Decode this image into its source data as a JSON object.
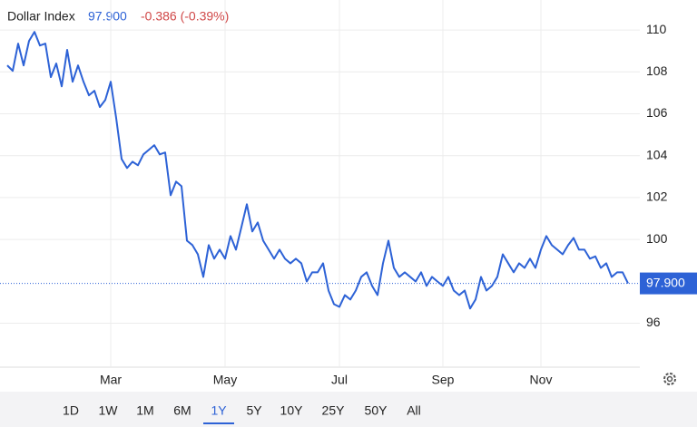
{
  "chart_data": {
    "type": "line",
    "title": "Dollar Index",
    "price": "97.900",
    "change": "-0.386 (-0.39%)",
    "color": "#2d62d6",
    "categories": [
      null,
      null,
      null,
      null,
      null,
      null,
      null,
      null,
      null,
      null,
      null,
      null,
      null,
      null,
      null,
      null,
      null,
      null,
      null,
      "Mar",
      null,
      null,
      null,
      null,
      null,
      null,
      null,
      null,
      null,
      null,
      null,
      null,
      null,
      null,
      null,
      null,
      null,
      null,
      null,
      null,
      "May",
      null,
      null,
      null,
      null,
      null,
      null,
      null,
      null,
      null,
      null,
      null,
      null,
      null,
      null,
      null,
      null,
      null,
      null,
      null,
      null,
      "Jul",
      null,
      null,
      null,
      null,
      null,
      null,
      null,
      null,
      null,
      null,
      null,
      null,
      null,
      null,
      null,
      null,
      null,
      null,
      "Sep",
      null,
      null,
      null,
      null,
      null,
      null,
      null,
      null,
      null,
      null,
      null,
      null,
      null,
      null,
      null,
      null,
      null,
      "Nov",
      null,
      null,
      null,
      null,
      null,
      null,
      null,
      null,
      null,
      null,
      null,
      null,
      null,
      null,
      null,
      null
    ],
    "values": [
      108.31,
      108.05,
      109.35,
      108.31,
      109.48,
      109.91,
      109.26,
      109.35,
      107.75,
      108.4,
      107.31,
      109.05,
      107.53,
      108.31,
      107.53,
      106.88,
      107.1,
      106.32,
      106.66,
      107.53,
      105.8,
      103.84,
      103.41,
      103.71,
      103.54,
      104.06,
      104.28,
      104.5,
      104.06,
      104.15,
      102.11,
      102.76,
      102.54,
      99.94,
      99.73,
      99.29,
      98.21,
      99.73,
      99.08,
      99.51,
      99.08,
      100.16,
      99.51,
      100.59,
      101.68,
      100.38,
      100.81,
      99.94,
      99.51,
      99.08,
      99.51,
      99.08,
      98.86,
      99.08,
      98.86,
      97.99,
      98.43,
      98.43,
      98.86,
      97.56,
      96.91,
      96.78,
      97.34,
      97.13,
      97.56,
      98.21,
      98.43,
      97.78,
      97.34,
      98.86,
      99.94,
      98.64,
      98.21,
      98.43,
      98.21,
      97.99,
      98.43,
      97.78,
      98.21,
      97.99,
      97.78,
      98.21,
      97.56,
      97.34,
      97.56,
      96.7,
      97.13,
      98.21,
      97.56,
      97.78,
      98.21,
      99.29,
      98.86,
      98.43,
      98.86,
      98.64,
      99.08,
      98.64,
      99.51,
      100.16,
      99.73,
      99.51,
      99.29,
      99.73,
      100.07,
      99.51,
      99.51,
      99.08,
      99.19,
      98.64,
      98.86,
      98.21,
      98.43,
      98.43,
      97.9
    ],
    "ylim": [
      93.9,
      111
    ],
    "yticks": [
      96,
      100,
      102,
      104,
      106,
      108,
      110
    ],
    "grid": true,
    "ranges": [
      "1D",
      "1W",
      "1M",
      "6M",
      "1Y",
      "5Y",
      "10Y",
      "25Y",
      "50Y",
      "All"
    ],
    "selected_range": "1Y"
  }
}
